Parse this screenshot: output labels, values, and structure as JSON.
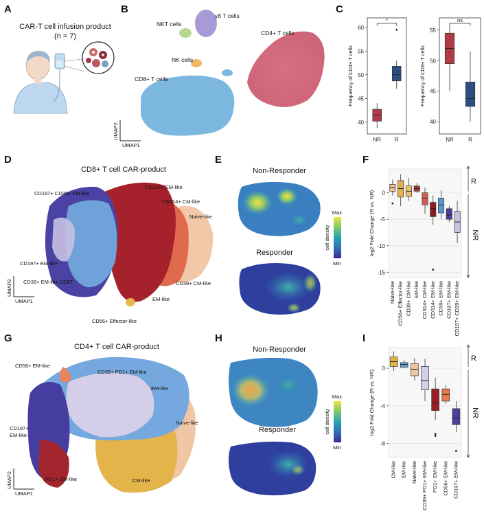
{
  "panels": {
    "A": "A",
    "B": "B",
    "C": "C",
    "D": "D",
    "E": "E",
    "F": "F",
    "G": "G",
    "H": "H",
    "I": "I"
  },
  "panel_a": {
    "title": "CAR-T cell infusion product",
    "subtitle": "(n = 7)"
  },
  "panel_b": {
    "labels": [
      "NKT cells",
      "γδ T cells",
      "CD4+ T cells",
      "NK cells",
      "CD8+ T cells"
    ],
    "xaxis": "UMAP1",
    "yaxis": "UMAP2"
  },
  "panel_d": {
    "title": "CD8+ T cell CAR-product",
    "labels": [
      "CD197+ CD39+ EM-like",
      "CD314+ EM-like",
      "CD314+ CM-like",
      "Naive-like",
      "CD197+ EM-like",
      "CD39+ EM-like CD8T",
      "CD39+ CM-like",
      "EM-like",
      "CD56+ Effector-like"
    ],
    "xaxis": "UMAP1",
    "yaxis": "UMAP2"
  },
  "panel_e": {
    "top": "Non-Responder",
    "bottom": "Responder",
    "scale_label": "cell density",
    "max": "Max",
    "min": "Min"
  },
  "panel_g": {
    "title": "CD4+ T cell CAR-product",
    "labels": [
      "CD56+ EM-like",
      "CD39+ PD1+ EM-like",
      "EM-like",
      "Naive-like",
      "CD197+",
      "EM-like",
      "PD1+ EM-like",
      "CM-like"
    ],
    "xaxis": "UMAP1",
    "yaxis": "UMAP2"
  },
  "panel_h": {
    "top": "Non-Responder",
    "bottom": "Responder",
    "scale_label": "cell density",
    "max": "Max",
    "min": "Min"
  },
  "chart_data": [
    {
      "id": "C1",
      "type": "box",
      "ylabel": "Frequency of CD4+ T cells",
      "categories": [
        "NR",
        "R"
      ],
      "ylim": [
        37.5,
        62
      ],
      "yticks": [
        40,
        45,
        50,
        55,
        60
      ],
      "colors": [
        "#b03a48",
        "#2c4f80"
      ],
      "boxes": [
        {
          "whislo": 38.7,
          "q1": 40.2,
          "med": 41.5,
          "q3": 42.7,
          "whishi": 44.0,
          "fliers": []
        },
        {
          "whislo": 47.0,
          "q1": 48.7,
          "med": 50.0,
          "q3": 51.8,
          "whishi": 53.0,
          "fliers": [
            59.5
          ]
        }
      ],
      "sig": "*"
    },
    {
      "id": "C2",
      "type": "box",
      "ylabel": "Frequency of CD8+ T cells",
      "categories": [
        "NR",
        "R"
      ],
      "ylim": [
        38,
        57
      ],
      "yticks": [
        40,
        45,
        50,
        55
      ],
      "colors": [
        "#b03a48",
        "#2c4f80"
      ],
      "boxes": [
        {
          "whislo": 45.0,
          "q1": 49.5,
          "med": 52.0,
          "q3": 54.5,
          "whishi": 56.0,
          "fliers": []
        },
        {
          "whislo": 40.0,
          "q1": 42.5,
          "med": 43.8,
          "q3": 46.5,
          "whishi": 51.5,
          "fliers": []
        }
      ],
      "sig": "ns"
    },
    {
      "id": "F",
      "type": "box",
      "ylabel": "log2 Fold Change (R vs. NR)",
      "ylim": [
        -16,
        4.5
      ],
      "yticks": [
        0,
        -5,
        -10,
        -15
      ],
      "categories": [
        "Naive-like",
        "CD56+ Effector-like",
        "CD39+ CM-like",
        "EM-like",
        "CD314+ CM-like",
        "CD314+ EM-like",
        "CD39+ EM-like",
        "CD197+ EM-like",
        "CD197+ CD39+ EM-like"
      ],
      "colors": [
        "#efc09a",
        "#e8b04a",
        "#f0c070",
        "#a83a33",
        "#d46050",
        "#8a1c22",
        "#5e96cf",
        "#4a3f9a",
        "#c8c3e3"
      ],
      "boxes": [
        {
          "whislo": -0.5,
          "q1": 0.3,
          "med": 1.0,
          "q3": 1.6,
          "whishi": 2.5,
          "fliers": [
            -2.0
          ]
        },
        {
          "whislo": -2.5,
          "q1": -0.8,
          "med": 0.8,
          "q3": 2.3,
          "whishi": 3.5,
          "fliers": []
        },
        {
          "whislo": -1.5,
          "q1": -0.7,
          "med": 0.3,
          "q3": 1.3,
          "whishi": 2.8,
          "fliers": []
        },
        {
          "whislo": 0.0,
          "q1": 0.3,
          "med": 0.8,
          "q3": 1.3,
          "whishi": 1.8,
          "fliers": []
        },
        {
          "whislo": -4.0,
          "q1": -2.3,
          "med": -1.0,
          "q3": 0.0,
          "whishi": 1.0,
          "fliers": []
        },
        {
          "whislo": -6.0,
          "q1": -4.5,
          "med": -3.0,
          "q3": -1.8,
          "whishi": -0.5,
          "fliers": [
            -14.5
          ]
        },
        {
          "whislo": -5.0,
          "q1": -3.8,
          "med": -2.3,
          "q3": -1.0,
          "whishi": 0.5,
          "fliers": []
        },
        {
          "whislo": -5.5,
          "q1": -5.0,
          "med": -4.2,
          "q3": -3.0,
          "whishi": -2.5,
          "fliers": []
        },
        {
          "whislo": -9.5,
          "q1": -7.5,
          "med": -5.5,
          "q3": -3.5,
          "whishi": -1.5,
          "fliers": []
        }
      ],
      "bracket_top": "R",
      "bracket_bottom": "NR"
    },
    {
      "id": "I",
      "type": "box",
      "ylabel": "log2 Fold Change (R vs. NR)",
      "ylim": [
        -9.5,
        2.2
      ],
      "yticks": [
        0,
        -4,
        -8
      ],
      "categories": [
        "CM-like",
        "EM-like",
        "Naive-like",
        "CD39+ PD1+ EM-like",
        "PD1+ EM-like",
        "CD56+ EM-like",
        "CD197+ EM-like"
      ],
      "colors": [
        "#e3b44a",
        "#6a9fd8",
        "#efc7a2",
        "#d3cde8",
        "#9a1f28",
        "#e57a4a",
        "#4a3f9a"
      ],
      "boxes": [
        {
          "whislo": -0.3,
          "q1": 0.2,
          "med": 0.7,
          "q3": 1.2,
          "whishi": 1.8,
          "fliers": []
        },
        {
          "whislo": 0.0,
          "q1": 0.1,
          "med": 0.4,
          "q3": 0.6,
          "whishi": 0.9,
          "fliers": []
        },
        {
          "whislo": -1.3,
          "q1": -0.8,
          "med": -0.1,
          "q3": 0.5,
          "whishi": 1.1,
          "fliers": []
        },
        {
          "whislo": -3.5,
          "q1": -2.3,
          "med": -1.3,
          "q3": 0.2,
          "whishi": 1.0,
          "fliers": []
        },
        {
          "whislo": -5.5,
          "q1": -4.5,
          "med": -3.7,
          "q3": -2.2,
          "whishi": -1.0,
          "fliers": [
            -7.0,
            -7.2
          ]
        },
        {
          "whislo": -3.8,
          "q1": -3.5,
          "med": -2.8,
          "q3": -2.2,
          "whishi": -1.8,
          "fliers": []
        },
        {
          "whislo": -6.8,
          "q1": -6.0,
          "med": -5.3,
          "q3": -4.3,
          "whishi": -3.5,
          "fliers": [
            -8.8
          ]
        }
      ],
      "bracket_top": "R",
      "bracket_bottom": "NR"
    }
  ]
}
